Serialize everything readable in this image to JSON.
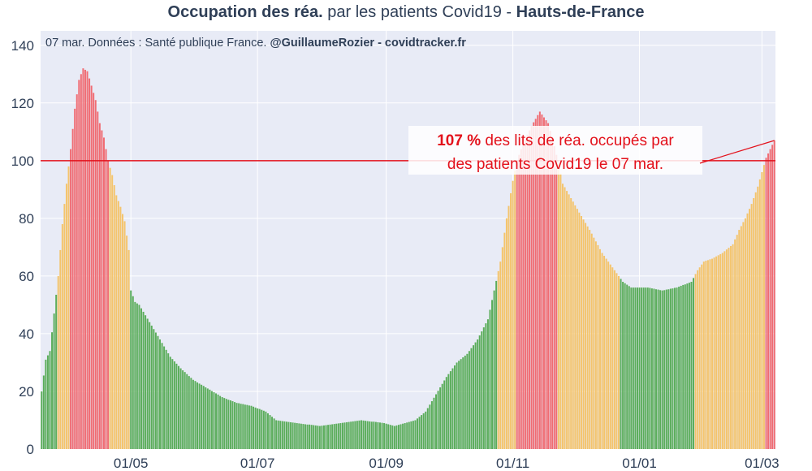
{
  "header": {
    "title_bold_1": "Occupation des réa.",
    "title_mid": " par les patients Covid19 - ",
    "title_bold_2": "Hauts-de-France"
  },
  "chart_data": {
    "type": "bar",
    "subtitle_prefix": "07 mar. Données : Santé publique France. ",
    "subtitle_bold": "@GuillaumeRozier - covidtracker.fr",
    "xlabel": "",
    "ylabel": "",
    "ylim": [
      0,
      145
    ],
    "yticks": [
      0,
      20,
      40,
      60,
      80,
      100,
      120,
      140
    ],
    "x_start": "2020-03-19",
    "x_end": "2021-03-07",
    "xticks": [
      {
        "label": "01/05",
        "date": "2020-05-01"
      },
      {
        "label": "01/07",
        "date": "2020-07-01"
      },
      {
        "label": "01/09",
        "date": "2020-09-01"
      },
      {
        "label": "01/11",
        "date": "2020-11-01"
      },
      {
        "label": "01/01",
        "date": "2021-01-01"
      },
      {
        "label": "01/03",
        "date": "2021-03-01"
      }
    ],
    "reference_line": {
      "y": 100,
      "color": "#e3111b"
    },
    "color_thresholds": [
      {
        "min": 100,
        "color": "#f06c73"
      },
      {
        "min": 60,
        "color": "#f4c46c"
      },
      {
        "min": 0,
        "color": "#5bad5b"
      }
    ],
    "grid": true,
    "legend": "none",
    "keyframes": [
      [
        "2020-03-19",
        20
      ],
      [
        "2020-03-21",
        31
      ],
      [
        "2020-03-23",
        34
      ],
      [
        "2020-03-25",
        47
      ],
      [
        "2020-03-27",
        60
      ],
      [
        "2020-03-29",
        78
      ],
      [
        "2020-03-31",
        92
      ],
      [
        "2020-04-02",
        104
      ],
      [
        "2020-04-04",
        118
      ],
      [
        "2020-04-06",
        128
      ],
      [
        "2020-04-08",
        132
      ],
      [
        "2020-04-10",
        131
      ],
      [
        "2020-04-12",
        126
      ],
      [
        "2020-04-14",
        121
      ],
      [
        "2020-04-16",
        113
      ],
      [
        "2020-04-18",
        108
      ],
      [
        "2020-04-20",
        100
      ],
      [
        "2020-04-22",
        95
      ],
      [
        "2020-04-24",
        88
      ],
      [
        "2020-04-26",
        84
      ],
      [
        "2020-04-28",
        79
      ],
      [
        "2020-04-30",
        69
      ],
      [
        "2020-05-01",
        55
      ],
      [
        "2020-05-03",
        51
      ],
      [
        "2020-05-05",
        50
      ],
      [
        "2020-05-10",
        44
      ],
      [
        "2020-05-15",
        38
      ],
      [
        "2020-05-20",
        32
      ],
      [
        "2020-05-25",
        28
      ],
      [
        "2020-05-31",
        24
      ],
      [
        "2020-06-07",
        21
      ],
      [
        "2020-06-14",
        18
      ],
      [
        "2020-06-21",
        16
      ],
      [
        "2020-06-28",
        15
      ],
      [
        "2020-07-05",
        13
      ],
      [
        "2020-07-10",
        10
      ],
      [
        "2020-07-20",
        9
      ],
      [
        "2020-07-31",
        8
      ],
      [
        "2020-08-10",
        9
      ],
      [
        "2020-08-20",
        10
      ],
      [
        "2020-08-31",
        9
      ],
      [
        "2020-09-05",
        8
      ],
      [
        "2020-09-10",
        9
      ],
      [
        "2020-09-15",
        10
      ],
      [
        "2020-09-20",
        13
      ],
      [
        "2020-09-25",
        19
      ],
      [
        "2020-09-30",
        25
      ],
      [
        "2020-10-05",
        30
      ],
      [
        "2020-10-10",
        33
      ],
      [
        "2020-10-15",
        38
      ],
      [
        "2020-10-20",
        45
      ],
      [
        "2020-10-23",
        55
      ],
      [
        "2020-10-26",
        65
      ],
      [
        "2020-10-29",
        80
      ],
      [
        "2020-11-01",
        93
      ],
      [
        "2020-11-03",
        100
      ],
      [
        "2020-11-06",
        106
      ],
      [
        "2020-11-10",
        112
      ],
      [
        "2020-11-14",
        117
      ],
      [
        "2020-11-18",
        113
      ],
      [
        "2020-11-21",
        105
      ],
      [
        "2020-11-23",
        99
      ],
      [
        "2020-11-25",
        92
      ],
      [
        "2020-11-29",
        87
      ],
      [
        "2020-12-03",
        82
      ],
      [
        "2020-12-08",
        76
      ],
      [
        "2020-12-14",
        68
      ],
      [
        "2020-12-20",
        62
      ],
      [
        "2020-12-24",
        58
      ],
      [
        "2020-12-28",
        56
      ],
      [
        "2021-01-05",
        56
      ],
      [
        "2021-01-12",
        55
      ],
      [
        "2021-01-19",
        56
      ],
      [
        "2021-01-26",
        58
      ],
      [
        "2021-01-29",
        62
      ],
      [
        "2021-02-01",
        65
      ],
      [
        "2021-02-05",
        66
      ],
      [
        "2021-02-10",
        68
      ],
      [
        "2021-02-15",
        71
      ],
      [
        "2021-02-18",
        76
      ],
      [
        "2021-02-21",
        80
      ],
      [
        "2021-02-24",
        85
      ],
      [
        "2021-02-27",
        91
      ],
      [
        "2021-03-01",
        96
      ],
      [
        "2021-03-03",
        101
      ],
      [
        "2021-03-05",
        104
      ],
      [
        "2021-03-07",
        107
      ]
    ],
    "annotation": {
      "value_text": "107  %",
      "line1_rest": " des lits de réa. occupés par",
      "line2": "des patients Covid19 le 07 mar.",
      "points_to": {
        "date": "2021-03-07",
        "value": 107
      }
    }
  }
}
